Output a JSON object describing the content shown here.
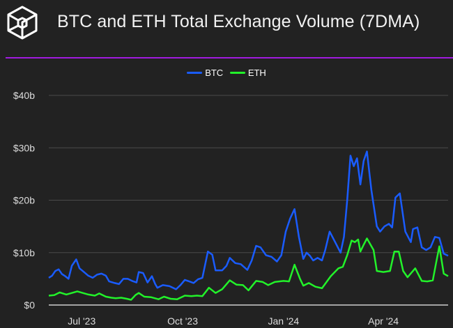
{
  "header": {
    "title": "BTC and ETH Total Exchange Volume (7DMA)",
    "logo": "cube-logo"
  },
  "colors": {
    "accent": "#a11be0",
    "btc": "#1a5cff",
    "eth": "#22f22a",
    "background": "#222222"
  },
  "chart_data": {
    "type": "line",
    "title": "BTC and ETH Total Exchange Volume (7DMA)",
    "xlabel": "",
    "ylabel": "",
    "x_unit": "days since Jun 1 2023",
    "xlim": [
      0,
      364
    ],
    "ylim": [
      0,
      40
    ],
    "yticks": [
      {
        "v": 0,
        "label": "$0"
      },
      {
        "v": 10,
        "label": "$10b"
      },
      {
        "v": 20,
        "label": "$20b"
      },
      {
        "v": 30,
        "label": "$30b"
      },
      {
        "v": 40,
        "label": "$40b"
      }
    ],
    "xticks": [
      {
        "v": 30,
        "label": "Jul '23"
      },
      {
        "v": 122,
        "label": "Oct '23"
      },
      {
        "v": 214,
        "label": "Jan '24"
      },
      {
        "v": 305,
        "label": "Apr '24"
      }
    ],
    "grid": true,
    "legend_position": "top-center",
    "series": [
      {
        "name": "BTC",
        "color": "#1a5cff",
        "x": [
          0,
          3,
          6,
          9,
          12,
          15,
          18,
          21,
          25,
          28,
          32,
          36,
          40,
          44,
          48,
          52,
          55,
          60,
          64,
          68,
          72,
          76,
          80,
          82,
          86,
          90,
          94,
          97,
          99,
          104,
          110,
          116,
          120,
          124,
          128,
          132,
          136,
          140,
          145,
          149,
          152,
          158,
          162,
          165,
          170,
          175,
          181,
          185,
          189,
          193,
          198,
          203,
          208,
          212,
          216,
          220,
          224,
          228,
          232,
          235,
          238,
          241,
          245,
          249,
          252,
          256,
          261,
          266,
          269,
          272,
          275,
          278,
          281,
          284,
          287,
          290,
          294,
          299,
          302,
          306,
          310,
          313,
          316,
          320,
          325,
          330,
          332,
          336,
          340,
          344,
          348,
          352,
          356,
          360,
          364
        ],
        "values": [
          5.2,
          5.6,
          6.5,
          6.8,
          5.9,
          5.5,
          5.0,
          7.5,
          8.7,
          7.0,
          6.3,
          5.6,
          5.2,
          5.8,
          6.0,
          5.6,
          4.5,
          4.2,
          4.0,
          5.0,
          5.0,
          4.6,
          4.3,
          6.3,
          6.1,
          4.3,
          5.5,
          4.0,
          3.3,
          3.8,
          3.6,
          3.0,
          3.8,
          4.8,
          4.5,
          4.2,
          4.9,
          5.2,
          10.2,
          9.6,
          6.6,
          6.6,
          7.5,
          9.0,
          8.0,
          7.8,
          6.7,
          8.5,
          11.3,
          11.0,
          9.5,
          9.2,
          8.3,
          9.5,
          14.0,
          16.5,
          18.3,
          13.0,
          8.8,
          10.0,
          9.4,
          8.5,
          9.0,
          8.5,
          10.5,
          14.0,
          12.0,
          10.0,
          13.0,
          20.0,
          28.5,
          26.5,
          28.0,
          23.0,
          27.5,
          29.3,
          22.0,
          15.0,
          14.0,
          15.0,
          15.5,
          14.8,
          20.5,
          21.3,
          14.0,
          12.0,
          14.5,
          14.8,
          11.0,
          10.5,
          11.0,
          13.0,
          12.8,
          9.8,
          9.4
        ]
      },
      {
        "name": "ETH",
        "color": "#22f22a",
        "x": [
          0,
          5,
          10,
          16,
          21,
          26,
          31,
          36,
          42,
          46,
          52,
          57,
          61,
          66,
          71,
          75,
          79,
          82,
          87,
          93,
          100,
          105,
          111,
          117,
          124,
          130,
          135,
          140,
          146,
          152,
          158,
          165,
          171,
          177,
          182,
          189,
          195,
          200,
          206,
          214,
          219,
          224,
          229,
          232,
          237,
          243,
          249,
          257,
          264,
          268,
          272,
          276,
          279,
          282,
          284,
          287,
          290,
          296,
          299,
          305,
          311,
          315,
          319,
          323,
          327,
          334,
          340,
          345,
          350,
          353,
          356,
          360,
          364
        ],
        "values": [
          1.8,
          1.9,
          2.4,
          2.0,
          2.3,
          2.6,
          2.3,
          2.0,
          1.8,
          2.2,
          1.6,
          1.4,
          1.3,
          1.4,
          1.2,
          1.0,
          1.9,
          2.3,
          1.6,
          1.5,
          1.1,
          1.6,
          1.2,
          1.1,
          1.8,
          1.7,
          1.8,
          1.7,
          3.3,
          2.3,
          3.0,
          4.7,
          3.9,
          3.8,
          2.8,
          4.6,
          4.4,
          3.8,
          4.4,
          4.6,
          4.5,
          7.7,
          5.0,
          3.7,
          4.2,
          3.5,
          3.2,
          5.5,
          7.0,
          7.3,
          9.5,
          12.3,
          12.0,
          12.5,
          10.2,
          11.5,
          12.7,
          10.5,
          6.5,
          6.3,
          6.5,
          10.2,
          10.2,
          6.5,
          5.3,
          7.0,
          4.6,
          4.5,
          4.7,
          8.0,
          11.2,
          6.0,
          5.5
        ]
      }
    ]
  }
}
